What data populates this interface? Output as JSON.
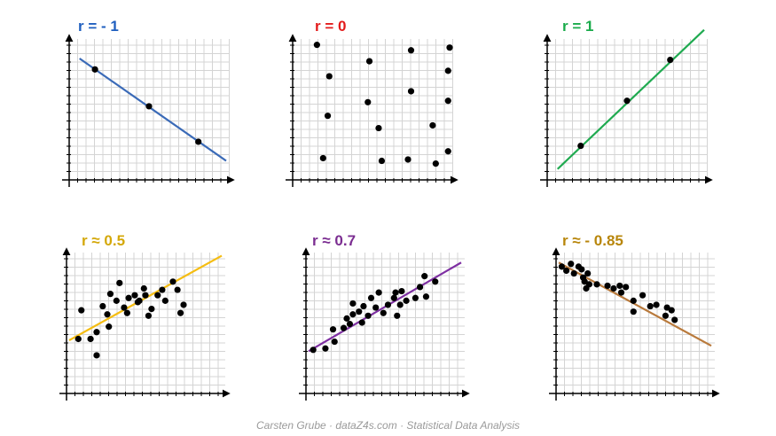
{
  "footer": "Carsten Grube · dataZ4s.com · Statistical Data Analysis",
  "chart_data": [
    {
      "type": "scatter",
      "title": "r = - 1",
      "title_color": "#1f5fbf",
      "line_color": "#3a6ab7",
      "grid": true,
      "xlim": [
        0,
        10
      ],
      "ylim": [
        0,
        10
      ],
      "line": [
        [
          0.5,
          8.7
        ],
        [
          10,
          1.2
        ]
      ],
      "points": [
        [
          1.5,
          7.9
        ],
        [
          5,
          5.2
        ],
        [
          8.2,
          2.6
        ]
      ]
    },
    {
      "type": "scatter",
      "title": "r = 0",
      "title_color": "#e31b1b",
      "line_color": null,
      "grid": true,
      "xlim": [
        0,
        10
      ],
      "ylim": [
        0,
        10
      ],
      "line": null,
      "points": [
        [
          1.4,
          9.7
        ],
        [
          2.2,
          7.4
        ],
        [
          2.1,
          4.5
        ],
        [
          1.8,
          1.4
        ],
        [
          4.8,
          8.5
        ],
        [
          4.7,
          5.5
        ],
        [
          5.4,
          3.6
        ],
        [
          5.6,
          1.2
        ],
        [
          7.5,
          9.3
        ],
        [
          7.5,
          6.3
        ],
        [
          7.3,
          1.3
        ],
        [
          8.9,
          3.8
        ],
        [
          9.1,
          1.0
        ],
        [
          10,
          9.5
        ],
        [
          9.9,
          7.8
        ],
        [
          9.9,
          5.6
        ],
        [
          9.9,
          1.9
        ]
      ]
    },
    {
      "type": "scatter",
      "title": "r = 1",
      "title_color": "#1aab4b",
      "line_color": "#1faa50",
      "grid": true,
      "xlim": [
        0,
        10
      ],
      "ylim": [
        0,
        10
      ],
      "line": [
        [
          0.5,
          0.6
        ],
        [
          10,
          10.8
        ]
      ],
      "points": [
        [
          2,
          2.3
        ],
        [
          5,
          5.6
        ],
        [
          7.8,
          8.6
        ]
      ]
    },
    {
      "type": "scatter",
      "title": "r ≈ 0.5",
      "title_color": "#d4a80a",
      "line_color": "#f5bd12",
      "grid": true,
      "xlim": [
        0,
        10
      ],
      "ylim": [
        0,
        10
      ],
      "line": [
        [
          0,
          3.7
        ],
        [
          10,
          9.9
        ]
      ],
      "points": [
        [
          0.6,
          3.8
        ],
        [
          0.8,
          5.9
        ],
        [
          1.4,
          3.8
        ],
        [
          1.8,
          2.6
        ],
        [
          1.8,
          4.3
        ],
        [
          2.2,
          6.2
        ],
        [
          2.5,
          5.6
        ],
        [
          2.6,
          4.7
        ],
        [
          2.7,
          7.1
        ],
        [
          3.1,
          6.6
        ],
        [
          3.3,
          7.9
        ],
        [
          3.6,
          6.1
        ],
        [
          3.8,
          5.7
        ],
        [
          3.9,
          6.8
        ],
        [
          4.3,
          7.0
        ],
        [
          4.6,
          6.6
        ],
        [
          4.9,
          7.5
        ],
        [
          5.0,
          7.0
        ],
        [
          5.2,
          5.5
        ],
        [
          5.8,
          7.0
        ],
        [
          6.1,
          7.4
        ],
        [
          6.8,
          8.0
        ],
        [
          7.1,
          7.4
        ],
        [
          7.5,
          6.3
        ],
        [
          5.4,
          6.0
        ],
        [
          4.5,
          6.5
        ],
        [
          6.3,
          6.6
        ],
        [
          7.3,
          5.7
        ]
      ]
    },
    {
      "type": "scatter",
      "title": "r ≈ 0.7",
      "title_color": "#7b2d91",
      "line_color": "#7e2fa2",
      "grid": true,
      "xlim": [
        0,
        10
      ],
      "ylim": [
        0,
        10
      ],
      "line": [
        [
          0,
          2.9
        ],
        [
          10,
          9.4
        ]
      ],
      "points": [
        [
          0.3,
          3.0
        ],
        [
          1.1,
          3.1
        ],
        [
          1.6,
          4.5
        ],
        [
          1.7,
          3.6
        ],
        [
          2.3,
          4.6
        ],
        [
          2.5,
          5.3
        ],
        [
          2.7,
          4.9
        ],
        [
          2.9,
          5.6
        ],
        [
          2.9,
          6.4
        ],
        [
          3.3,
          5.8
        ],
        [
          3.5,
          5.0
        ],
        [
          3.6,
          6.2
        ],
        [
          3.9,
          5.5
        ],
        [
          4.1,
          6.8
        ],
        [
          4.4,
          6.1
        ],
        [
          4.6,
          7.2
        ],
        [
          4.9,
          5.7
        ],
        [
          5.2,
          6.3
        ],
        [
          5.6,
          6.8
        ],
        [
          5.7,
          7.2
        ],
        [
          5.8,
          5.5
        ],
        [
          6.1,
          7.3
        ],
        [
          6.4,
          6.6
        ],
        [
          7.0,
          6.8
        ],
        [
          7.3,
          7.6
        ],
        [
          7.6,
          8.4
        ],
        [
          7.7,
          6.9
        ],
        [
          8.3,
          8.0
        ],
        [
          6.0,
          6.3
        ]
      ]
    },
    {
      "type": "scatter",
      "title": "r ≈ - 0.85",
      "title_color": "#b8860b",
      "line_color": "#b97a3c",
      "grid": true,
      "xlim": [
        0,
        10
      ],
      "ylim": [
        0,
        10
      ],
      "line": [
        [
          0,
          9.4
        ],
        [
          10,
          3.3
        ]
      ],
      "points": [
        [
          0.2,
          9.1
        ],
        [
          0.5,
          8.8
        ],
        [
          0.8,
          9.3
        ],
        [
          1.0,
          8.6
        ],
        [
          1.3,
          9.1
        ],
        [
          1.5,
          8.9
        ],
        [
          1.6,
          8.3
        ],
        [
          1.7,
          8.0
        ],
        [
          1.9,
          8.6
        ],
        [
          1.8,
          7.5
        ],
        [
          2.0,
          7.8
        ],
        [
          2.5,
          7.8
        ],
        [
          3.2,
          7.7
        ],
        [
          3.6,
          7.5
        ],
        [
          4.0,
          7.7
        ],
        [
          4.4,
          7.6
        ],
        [
          4.1,
          7.2
        ],
        [
          4.9,
          6.6
        ],
        [
          4.9,
          5.8
        ],
        [
          5.5,
          7.0
        ],
        [
          6.0,
          6.2
        ],
        [
          6.4,
          6.3
        ],
        [
          7.0,
          5.5
        ],
        [
          7.1,
          6.1
        ],
        [
          7.4,
          5.9
        ],
        [
          7.6,
          5.2
        ]
      ]
    }
  ]
}
